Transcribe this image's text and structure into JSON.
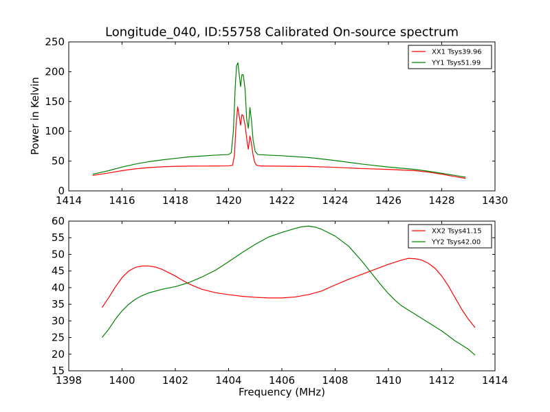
{
  "chart_data": [
    {
      "type": "line",
      "title": "Longitude_040, ID:55758 Calibrated On-source spectrum",
      "xlabel": "",
      "ylabel": "Power in Kelvin",
      "xlim": [
        1414,
        1430
      ],
      "ylim": [
        0,
        250
      ],
      "xticks": [
        "1414",
        "1416",
        "1418",
        "1420",
        "1422",
        "1424",
        "1426",
        "1428",
        "1430"
      ],
      "yticks": [
        "0",
        "50",
        "100",
        "150",
        "200",
        "250"
      ],
      "grid": false,
      "legend_position": "top-right",
      "series": [
        {
          "name": "XX1 Tsys39.96",
          "color": "#ff0000",
          "points": [
            [
              1414.9,
              26
            ],
            [
              1415.5,
              30
            ],
            [
              1416.0,
              34
            ],
            [
              1416.5,
              37
            ],
            [
              1417.0,
              39
            ],
            [
              1417.5,
              40.5
            ],
            [
              1418.0,
              41.2
            ],
            [
              1418.5,
              41.6
            ],
            [
              1419.0,
              41.7
            ],
            [
              1419.5,
              41.8
            ],
            [
              1420.0,
              42
            ],
            [
              1420.15,
              43
            ],
            [
              1420.22,
              60
            ],
            [
              1420.28,
              110
            ],
            [
              1420.34,
              141
            ],
            [
              1420.4,
              125
            ],
            [
              1420.45,
              110
            ],
            [
              1420.5,
              128
            ],
            [
              1420.55,
              126
            ],
            [
              1420.62,
              110
            ],
            [
              1420.68,
              88
            ],
            [
              1420.74,
              70
            ],
            [
              1420.8,
              92
            ],
            [
              1420.85,
              82
            ],
            [
              1420.92,
              60
            ],
            [
              1420.98,
              48
            ],
            [
              1421.05,
              43
            ],
            [
              1421.2,
              41.8
            ],
            [
              1422.0,
              41.5
            ],
            [
              1423.0,
              41
            ],
            [
              1424.0,
              39.5
            ],
            [
              1425.0,
              37.5
            ],
            [
              1426.0,
              36
            ],
            [
              1427.0,
              34
            ],
            [
              1427.5,
              31.5
            ],
            [
              1428.0,
              28
            ],
            [
              1428.5,
              24
            ],
            [
              1428.9,
              21
            ]
          ]
        },
        {
          "name": "YY1 Tsys51.99",
          "color": "#008000",
          "points": [
            [
              1414.9,
              28
            ],
            [
              1415.5,
              34
            ],
            [
              1416.0,
              40
            ],
            [
              1416.5,
              45
            ],
            [
              1417.0,
              49
            ],
            [
              1417.5,
              52
            ],
            [
              1418.0,
              54.5
            ],
            [
              1418.5,
              57
            ],
            [
              1419.0,
              58.5
            ],
            [
              1419.5,
              60
            ],
            [
              1420.0,
              61
            ],
            [
              1420.1,
              64
            ],
            [
              1420.18,
              100
            ],
            [
              1420.25,
              175
            ],
            [
              1420.3,
              210
            ],
            [
              1420.35,
              215
            ],
            [
              1420.4,
              195
            ],
            [
              1420.45,
              175
            ],
            [
              1420.5,
              195
            ],
            [
              1420.55,
              195
            ],
            [
              1420.62,
              170
            ],
            [
              1420.68,
              120
            ],
            [
              1420.74,
              105
            ],
            [
              1420.8,
              140
            ],
            [
              1420.86,
              118
            ],
            [
              1420.92,
              85
            ],
            [
              1421.0,
              66
            ],
            [
              1421.1,
              61
            ],
            [
              1421.5,
              60
            ],
            [
              1422.0,
              59
            ],
            [
              1423.0,
              56
            ],
            [
              1424.0,
              51
            ],
            [
              1425.0,
              45
            ],
            [
              1426.0,
              40
            ],
            [
              1427.0,
              36
            ],
            [
              1427.5,
              33
            ],
            [
              1428.0,
              29.5
            ],
            [
              1428.5,
              26
            ],
            [
              1428.9,
              23
            ]
          ]
        }
      ]
    },
    {
      "type": "line",
      "title": "",
      "xlabel": "Frequency (MHz)",
      "ylabel": "",
      "xlim": [
        1398,
        1414
      ],
      "ylim": [
        15,
        60
      ],
      "xticks": [
        "1398",
        "1400",
        "1402",
        "1404",
        "1406",
        "1408",
        "1410",
        "1412",
        "1414"
      ],
      "yticks": [
        "15",
        "20",
        "25",
        "30",
        "35",
        "40",
        "45",
        "50",
        "55",
        "60"
      ],
      "grid": false,
      "legend_position": "top-right",
      "series": [
        {
          "name": "XX2 Tsys41.15",
          "color": "#ff0000",
          "points": [
            [
              1399.25,
              34
            ],
            [
              1399.5,
              37
            ],
            [
              1399.75,
              40.2
            ],
            [
              1400.0,
              43
            ],
            [
              1400.25,
              45
            ],
            [
              1400.5,
              46.1
            ],
            [
              1400.75,
              46.5
            ],
            [
              1401.0,
              46.5
            ],
            [
              1401.25,
              46.2
            ],
            [
              1401.5,
              45.5
            ],
            [
              1401.75,
              44.5
            ],
            [
              1402.0,
              43.5
            ],
            [
              1402.25,
              42.3
            ],
            [
              1402.5,
              41.2
            ],
            [
              1402.75,
              40.3
            ],
            [
              1403.0,
              39.5
            ],
            [
              1403.5,
              38.5
            ],
            [
              1404.0,
              37.9
            ],
            [
              1404.5,
              37.4
            ],
            [
              1405.0,
              37.1
            ],
            [
              1405.5,
              36.9
            ],
            [
              1406.0,
              36.9
            ],
            [
              1406.5,
              37.2
            ],
            [
              1407.0,
              37.9
            ],
            [
              1407.5,
              39
            ],
            [
              1408.0,
              40.8
            ],
            [
              1408.5,
              42.5
            ],
            [
              1409.0,
              44
            ],
            [
              1409.5,
              45.5
            ],
            [
              1410.0,
              47
            ],
            [
              1410.5,
              48.3
            ],
            [
              1410.75,
              48.8
            ],
            [
              1411.0,
              48.7
            ],
            [
              1411.25,
              48.3
            ],
            [
              1411.5,
              47.3
            ],
            [
              1411.75,
              45.8
            ],
            [
              1412.0,
              43.5
            ],
            [
              1412.25,
              40.5
            ],
            [
              1412.5,
              37
            ],
            [
              1412.75,
              33.5
            ],
            [
              1413.0,
              30.5
            ],
            [
              1413.25,
              28
            ]
          ]
        },
        {
          "name": "YY2 Tsys42.00",
          "color": "#008000",
          "points": [
            [
              1399.25,
              25
            ],
            [
              1399.5,
              27.5
            ],
            [
              1399.75,
              30.5
            ],
            [
              1400.0,
              33
            ],
            [
              1400.25,
              35
            ],
            [
              1400.5,
              36.5
            ],
            [
              1400.75,
              37.6
            ],
            [
              1401.0,
              38.4
            ],
            [
              1401.5,
              39.5
            ],
            [
              1402.0,
              40.3
            ],
            [
              1402.5,
              41.5
            ],
            [
              1403.0,
              43.2
            ],
            [
              1403.5,
              45.2
            ],
            [
              1404.0,
              47.8
            ],
            [
              1404.5,
              50.5
            ],
            [
              1405.0,
              53
            ],
            [
              1405.5,
              55.2
            ],
            [
              1406.0,
              56.6
            ],
            [
              1406.5,
              57.8
            ],
            [
              1406.75,
              58.3
            ],
            [
              1407.0,
              58.5
            ],
            [
              1407.25,
              58.2
            ],
            [
              1407.5,
              57.5
            ],
            [
              1408.0,
              55.5
            ],
            [
              1408.5,
              52.5
            ],
            [
              1409.0,
              48
            ],
            [
              1409.25,
              45.5
            ],
            [
              1409.5,
              43
            ],
            [
              1409.75,
              40.5
            ],
            [
              1410.0,
              38.2
            ],
            [
              1410.25,
              36.2
            ],
            [
              1410.5,
              34.5
            ],
            [
              1411.0,
              32
            ],
            [
              1411.5,
              29.5
            ],
            [
              1412.0,
              27
            ],
            [
              1412.5,
              24
            ],
            [
              1413.0,
              21.5
            ],
            [
              1413.25,
              19.7
            ]
          ]
        }
      ]
    }
  ]
}
